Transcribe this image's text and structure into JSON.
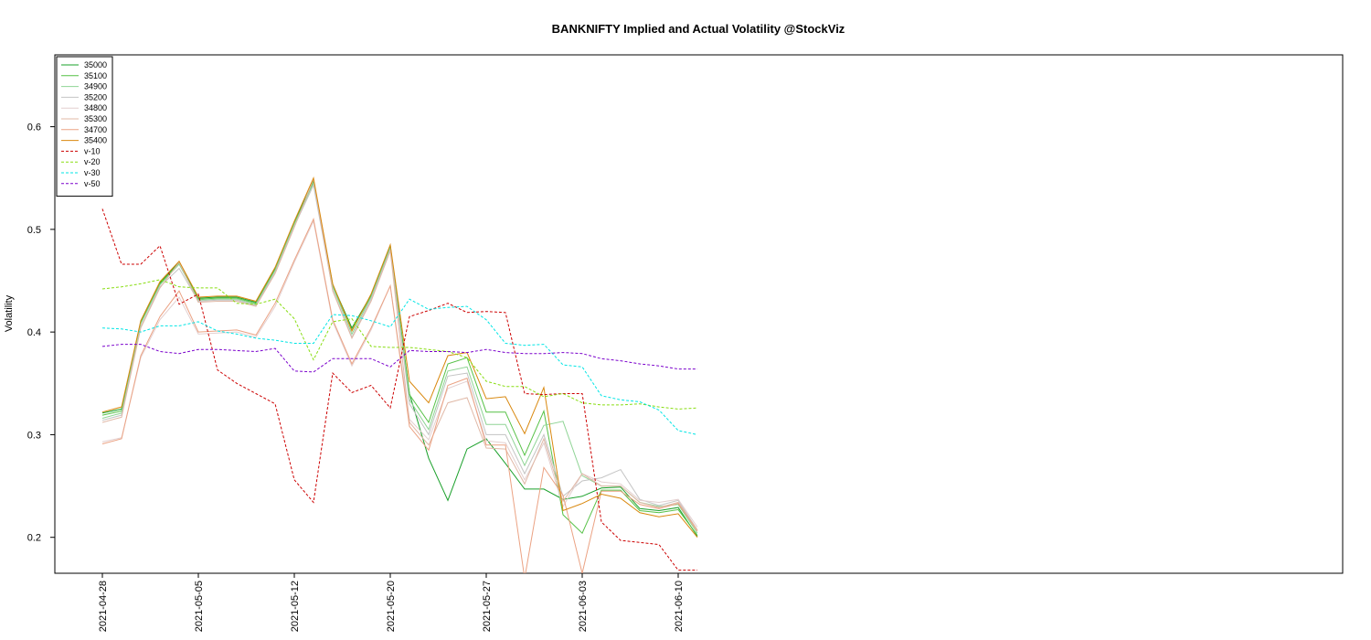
{
  "chart_data": {
    "type": "line",
    "title": "BANKNIFTY Implied and Actual Volatility @StockViz",
    "ylabel": "Volatility",
    "xlabel": "",
    "ylim": [
      0.165,
      0.67
    ],
    "yticks": [
      0.2,
      0.3,
      0.4,
      0.5,
      0.6
    ],
    "ytick_labels": [
      "0.2",
      "0.3",
      "0.4",
      "0.5",
      "0.6"
    ],
    "xtick_labels": [
      "2021-04-28",
      "2021-05-05",
      "2021-05-12",
      "2021-05-20",
      "2021-05-27",
      "2021-06-03",
      "2021-06-10"
    ],
    "xtick_index": [
      0,
      5,
      10,
      15,
      20,
      25,
      30
    ],
    "x": [
      "2021-04-28",
      "2021-04-29",
      "2021-04-30",
      "2021-05-03",
      "2021-05-04",
      "2021-05-05",
      "2021-05-06",
      "2021-05-07",
      "2021-05-10",
      "2021-05-11",
      "2021-05-12",
      "2021-05-14",
      "2021-05-17",
      "2021-05-18",
      "2021-05-19",
      "2021-05-20",
      "2021-05-21",
      "2021-05-24",
      "2021-05-25",
      "2021-05-26",
      "2021-05-27",
      "2021-05-28",
      "2021-05-31",
      "2021-06-01",
      "2021-06-02",
      "2021-06-03",
      "2021-06-04",
      "2021-06-07",
      "2021-06-08",
      "2021-06-09",
      "2021-06-10",
      "2021-06-11"
    ],
    "grid": false,
    "legend_position": "top-left",
    "series": [
      {
        "name": "35000",
        "color": "#1aa02a",
        "dash": "solid",
        "values": [
          0.321,
          0.325,
          0.41,
          0.448,
          0.468,
          0.433,
          0.434,
          0.434,
          0.429,
          0.462,
          0.507,
          0.547,
          0.446,
          0.404,
          0.436,
          0.484,
          0.34,
          0.277,
          0.236,
          0.286,
          0.296,
          0.272,
          0.247,
          0.247,
          0.237,
          0.24,
          0.248,
          0.249,
          0.228,
          0.226,
          0.229,
          0.201
        ]
      },
      {
        "name": "35100",
        "color": "#55c145",
        "dash": "solid",
        "values": [
          0.319,
          0.323,
          0.409,
          0.447,
          0.467,
          0.432,
          0.433,
          0.433,
          0.428,
          0.461,
          0.506,
          0.546,
          0.445,
          0.402,
          0.435,
          0.483,
          0.339,
          0.312,
          0.369,
          0.375,
          0.322,
          0.322,
          0.28,
          0.323,
          0.222,
          0.204,
          0.246,
          0.246,
          0.226,
          0.224,
          0.227,
          0.202
        ]
      },
      {
        "name": "34900",
        "color": "#8fd495",
        "dash": "solid",
        "values": [
          0.316,
          0.321,
          0.408,
          0.446,
          0.466,
          0.431,
          0.432,
          0.432,
          0.427,
          0.46,
          0.505,
          0.545,
          0.444,
          0.398,
          0.434,
          0.482,
          0.334,
          0.305,
          0.362,
          0.366,
          0.31,
          0.31,
          0.27,
          0.309,
          0.313,
          0.26,
          0.25,
          0.25,
          0.234,
          0.23,
          0.232,
          0.204
        ]
      },
      {
        "name": "35200",
        "color": "#c4c4c4",
        "dash": "solid",
        "values": [
          0.314,
          0.319,
          0.405,
          0.444,
          0.462,
          0.43,
          0.431,
          0.431,
          0.426,
          0.458,
          0.503,
          0.543,
          0.441,
          0.395,
          0.432,
          0.48,
          0.33,
          0.3,
          0.357,
          0.36,
          0.3,
          0.3,
          0.262,
          0.3,
          0.24,
          0.255,
          0.258,
          0.266,
          0.237,
          0.231,
          0.236,
          0.207
        ]
      },
      {
        "name": "34800",
        "color": "#e3cfcf",
        "dash": "solid",
        "values": [
          0.293,
          0.297,
          0.375,
          0.412,
          0.434,
          0.398,
          0.399,
          0.4,
          0.395,
          0.425,
          0.468,
          0.508,
          0.41,
          0.367,
          0.402,
          0.445,
          0.315,
          0.295,
          0.345,
          0.352,
          0.294,
          0.292,
          0.256,
          0.292,
          0.23,
          0.262,
          0.254,
          0.252,
          0.236,
          0.234,
          0.237,
          0.21
        ]
      },
      {
        "name": "35300",
        "color": "#e0b8a6",
        "dash": "solid",
        "values": [
          0.312,
          0.317,
          0.404,
          0.443,
          0.468,
          0.429,
          0.43,
          0.43,
          0.425,
          0.457,
          0.502,
          0.549,
          0.44,
          0.394,
          0.43,
          0.479,
          0.312,
          0.29,
          0.331,
          0.336,
          0.287,
          0.286,
          0.252,
          0.296,
          0.235,
          0.262,
          0.25,
          0.25,
          0.234,
          0.229,
          0.234,
          0.207
        ]
      },
      {
        "name": "34700",
        "color": "#eba283",
        "dash": "solid",
        "values": [
          0.291,
          0.296,
          0.377,
          0.415,
          0.44,
          0.4,
          0.401,
          0.402,
          0.397,
          0.428,
          0.47,
          0.51,
          0.412,
          0.369,
          0.404,
          0.445,
          0.308,
          0.285,
          0.348,
          0.355,
          0.29,
          0.29,
          0.16,
          0.268,
          0.241,
          0.165,
          0.245,
          0.245,
          0.232,
          0.228,
          0.233,
          0.206
        ]
      },
      {
        "name": "35400",
        "color": "#d9880e",
        "dash": "solid",
        "values": [
          0.322,
          0.327,
          0.411,
          0.449,
          0.469,
          0.434,
          0.435,
          0.435,
          0.43,
          0.463,
          0.508,
          0.55,
          0.447,
          0.401,
          0.437,
          0.485,
          0.352,
          0.331,
          0.377,
          0.38,
          0.335,
          0.337,
          0.301,
          0.346,
          0.226,
          0.233,
          0.242,
          0.238,
          0.224,
          0.22,
          0.223,
          0.2
        ]
      },
      {
        "name": "v-10",
        "color": "#cc0000",
        "dash": "dashed",
        "values": [
          0.52,
          0.466,
          0.466,
          0.484,
          0.427,
          0.437,
          0.363,
          0.35,
          0.34,
          0.33,
          0.256,
          0.234,
          0.36,
          0.341,
          0.348,
          0.326,
          0.415,
          0.421,
          0.428,
          0.419,
          0.42,
          0.419,
          0.34,
          0.339,
          0.34,
          0.34,
          0.215,
          0.197,
          0.195,
          0.193,
          0.168,
          0.168
        ]
      },
      {
        "name": "v-20",
        "color": "#88dd11",
        "dash": "dashed",
        "values": [
          0.442,
          0.444,
          0.447,
          0.451,
          0.444,
          0.443,
          0.443,
          0.428,
          0.427,
          0.432,
          0.413,
          0.373,
          0.41,
          0.413,
          0.386,
          0.385,
          0.385,
          0.383,
          0.381,
          0.375,
          0.352,
          0.347,
          0.347,
          0.337,
          0.34,
          0.331,
          0.329,
          0.329,
          0.33,
          0.327,
          0.325,
          0.326
        ]
      },
      {
        "name": "v-30",
        "color": "#00e5e5",
        "dash": "dashed",
        "values": [
          0.404,
          0.403,
          0.4,
          0.406,
          0.406,
          0.41,
          0.401,
          0.398,
          0.394,
          0.392,
          0.389,
          0.389,
          0.417,
          0.416,
          0.411,
          0.405,
          0.432,
          0.422,
          0.424,
          0.425,
          0.412,
          0.389,
          0.387,
          0.388,
          0.368,
          0.366,
          0.338,
          0.334,
          0.332,
          0.324,
          0.304,
          0.3
        ]
      },
      {
        "name": "v-50",
        "color": "#7a00cc",
        "dash": "dashed",
        "values": [
          0.386,
          0.388,
          0.388,
          0.381,
          0.379,
          0.383,
          0.383,
          0.382,
          0.381,
          0.384,
          0.362,
          0.361,
          0.374,
          0.374,
          0.374,
          0.366,
          0.382,
          0.381,
          0.381,
          0.38,
          0.383,
          0.38,
          0.379,
          0.379,
          0.38,
          0.379,
          0.374,
          0.372,
          0.369,
          0.367,
          0.364,
          0.364
        ]
      }
    ]
  }
}
